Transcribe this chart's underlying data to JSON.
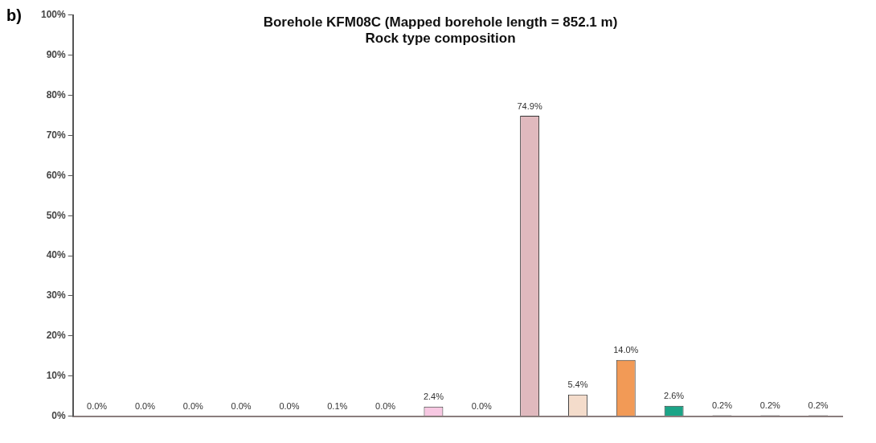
{
  "chart_data": {
    "type": "bar",
    "title": [
      "Borehole KFM08C (Mapped borehole length = 852.1 m)",
      "Rock type composition"
    ],
    "annotations": [
      "b)"
    ],
    "categories": [
      null,
      null,
      null,
      null,
      null,
      null,
      null,
      null,
      null,
      null,
      null,
      null,
      null,
      null,
      null,
      null
    ],
    "values": [
      0.0,
      0.0,
      0.0,
      0.0,
      0.0,
      0.1,
      0.0,
      2.4,
      0.0,
      74.9,
      5.4,
      14.0,
      2.6,
      0.2,
      0.2,
      0.2
    ],
    "value_labels": [
      "0.0%",
      "0.0%",
      "0.0%",
      "0.0%",
      "0.0%",
      "0.1%",
      "0.0%",
      "2.4%",
      "0.0%",
      "74.9%",
      "5.4%",
      "14.0%",
      "2.6%",
      "0.2%",
      "0.2%",
      "0.2%"
    ],
    "colors": [
      "#555555",
      "#555555",
      "#555555",
      "#555555",
      "#555555",
      "#555555",
      "#555555",
      "#f7c8e2",
      "#555555",
      "#e0b9be",
      "#f4dccb",
      "#f29a56",
      "#1ba487",
      "#555555",
      "#555555",
      "#555555"
    ],
    "ylim": [
      0,
      100
    ],
    "yticks": [
      {
        "value": 0,
        "label": "0%"
      },
      {
        "value": 10,
        "label": "10%"
      },
      {
        "value": 20,
        "label": "20%"
      },
      {
        "value": 30,
        "label": "30%"
      },
      {
        "value": 40,
        "label": "40%"
      },
      {
        "value": 50,
        "label": "50%"
      },
      {
        "value": 60,
        "label": "60%"
      },
      {
        "value": 70,
        "label": "70%"
      },
      {
        "value": 80,
        "label": "80%"
      },
      {
        "value": 90,
        "label": "90%"
      },
      {
        "value": 100,
        "label": "100%"
      }
    ],
    "grid": false,
    "legend": false
  }
}
